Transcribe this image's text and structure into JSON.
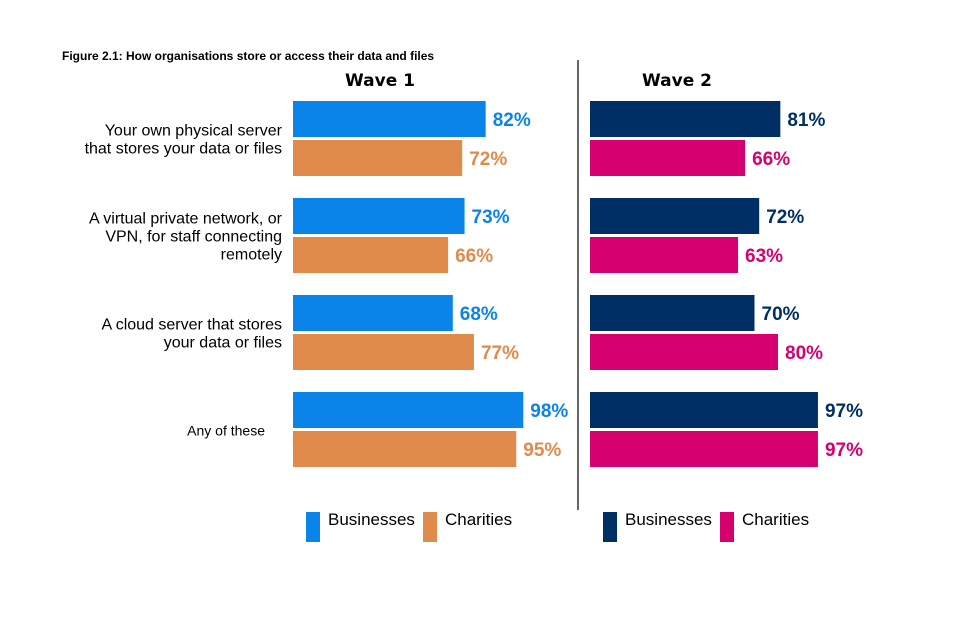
{
  "chart_data": {
    "type": "bar",
    "orientation": "horizontal",
    "title": "Figure 2.1: How organisations store or access their data and files",
    "categories": [
      [
        "Your own physical server",
        "that stores your data or files"
      ],
      [
        "A virtual private network, or",
        "VPN, for staff connecting",
        "remotely"
      ],
      [
        "A cloud server that stores",
        "your data or files"
      ],
      [
        "Any of these"
      ]
    ],
    "xlim": [
      0,
      100
    ],
    "panels": [
      {
        "title": "Wave 1",
        "series": [
          {
            "name": "Businesses",
            "color": "#0a84e8",
            "values": [
              82,
              73,
              68,
              98
            ]
          },
          {
            "name": "Charities",
            "color": "#e08a4b",
            "values": [
              72,
              66,
              77,
              95
            ]
          }
        ]
      },
      {
        "title": "Wave 2",
        "series": [
          {
            "name": "Businesses",
            "color": "#002f65",
            "values": [
              81,
              72,
              70,
              97
            ]
          },
          {
            "name": "Charities",
            "color": "#d6006f",
            "values": [
              66,
              63,
              80,
              97
            ]
          }
        ]
      }
    ],
    "value_suffix": "%",
    "legend_position": "bottom"
  }
}
